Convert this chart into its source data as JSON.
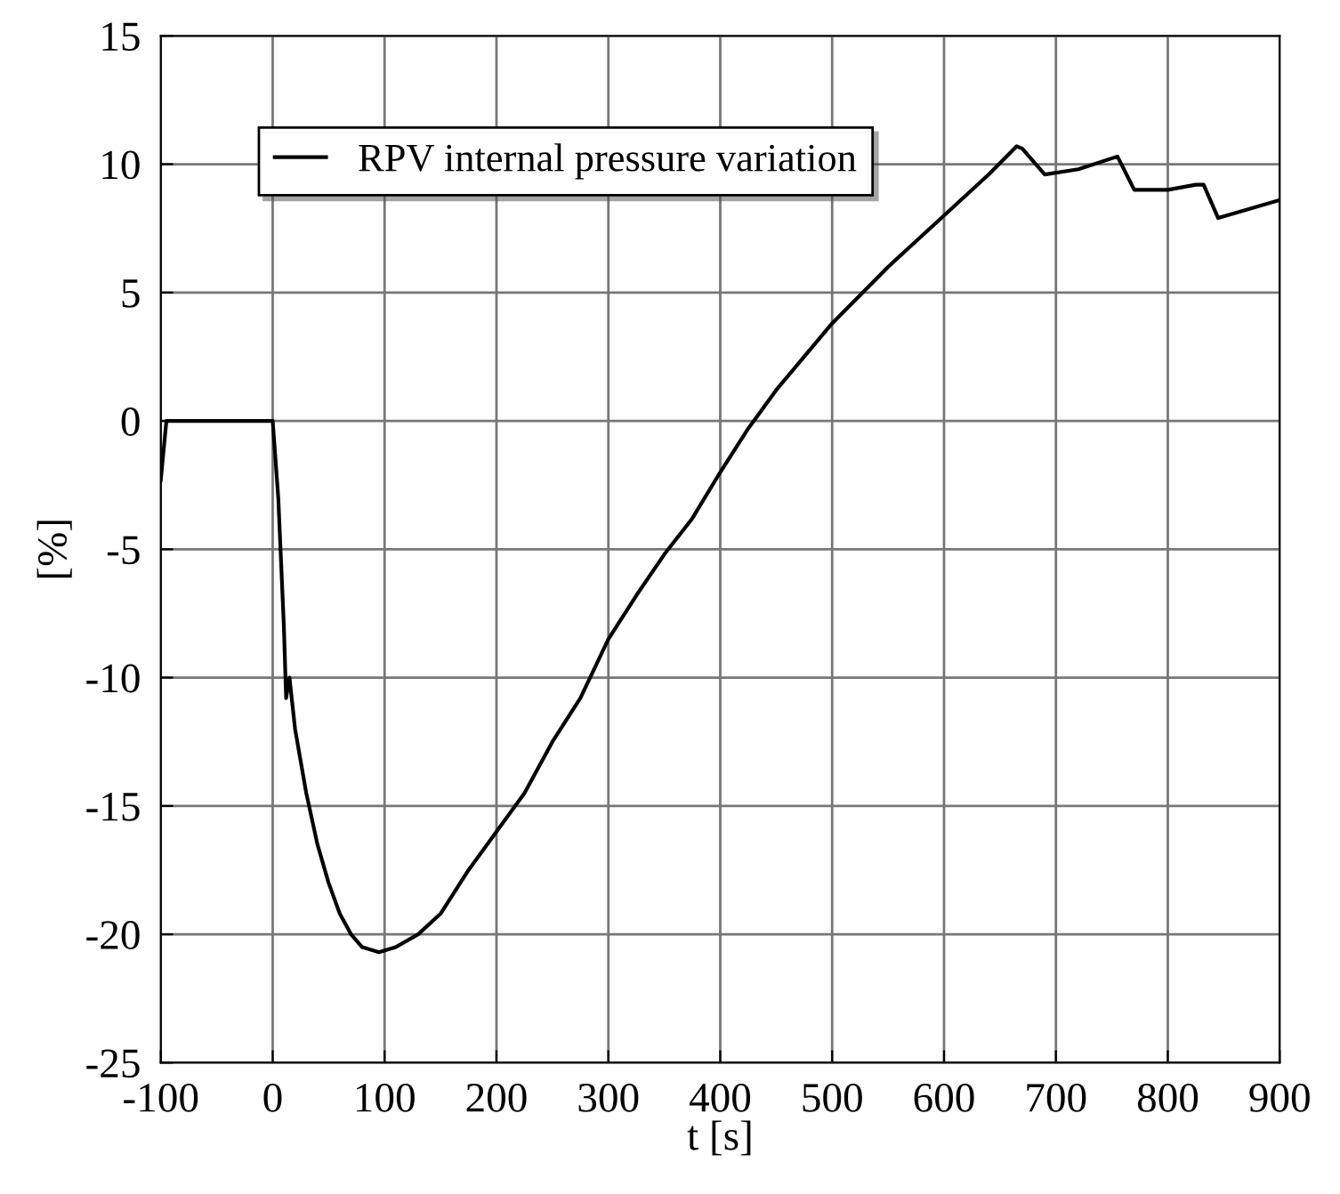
{
  "chart_data": {
    "type": "line",
    "xlabel": "t [s]",
    "ylabel": "[%]",
    "xlim": [
      -100,
      900
    ],
    "ylim": [
      -25,
      15
    ],
    "xticks": [
      -100,
      0,
      100,
      200,
      300,
      400,
      500,
      600,
      700,
      800,
      900
    ],
    "yticks": [
      -25,
      -20,
      -15,
      -10,
      -5,
      0,
      5,
      10,
      15
    ],
    "grid": true,
    "legend": "top left",
    "series": [
      {
        "name": "RPV internal pressure variation",
        "color": "#000000",
        "x": [
          -100,
          -95,
          0,
          5,
          10,
          12,
          15,
          17,
          20,
          30,
          40,
          50,
          60,
          70,
          80,
          95,
          110,
          130,
          150,
          175,
          200,
          225,
          250,
          275,
          300,
          325,
          350,
          375,
          400,
          425,
          450,
          500,
          550,
          600,
          640,
          665,
          670,
          690,
          720,
          755,
          770,
          800,
          825,
          832,
          845,
          900
        ],
        "values": [
          -2.3,
          0,
          0,
          -3,
          -8,
          -10.8,
          -10,
          -10.8,
          -12,
          -14.5,
          -16.5,
          -18,
          -19.2,
          -20,
          -20.5,
          -20.7,
          -20.5,
          -20,
          -19.2,
          -17.5,
          -16,
          -14.5,
          -12.5,
          -10.8,
          -8.5,
          -6.8,
          -5.2,
          -3.8,
          -2,
          -0.3,
          1.2,
          3.8,
          6,
          8,
          9.6,
          10.7,
          10.6,
          9.6,
          9.8,
          10.3,
          9,
          9,
          9.2,
          9.2,
          7.9,
          8.6
        ]
      }
    ]
  }
}
